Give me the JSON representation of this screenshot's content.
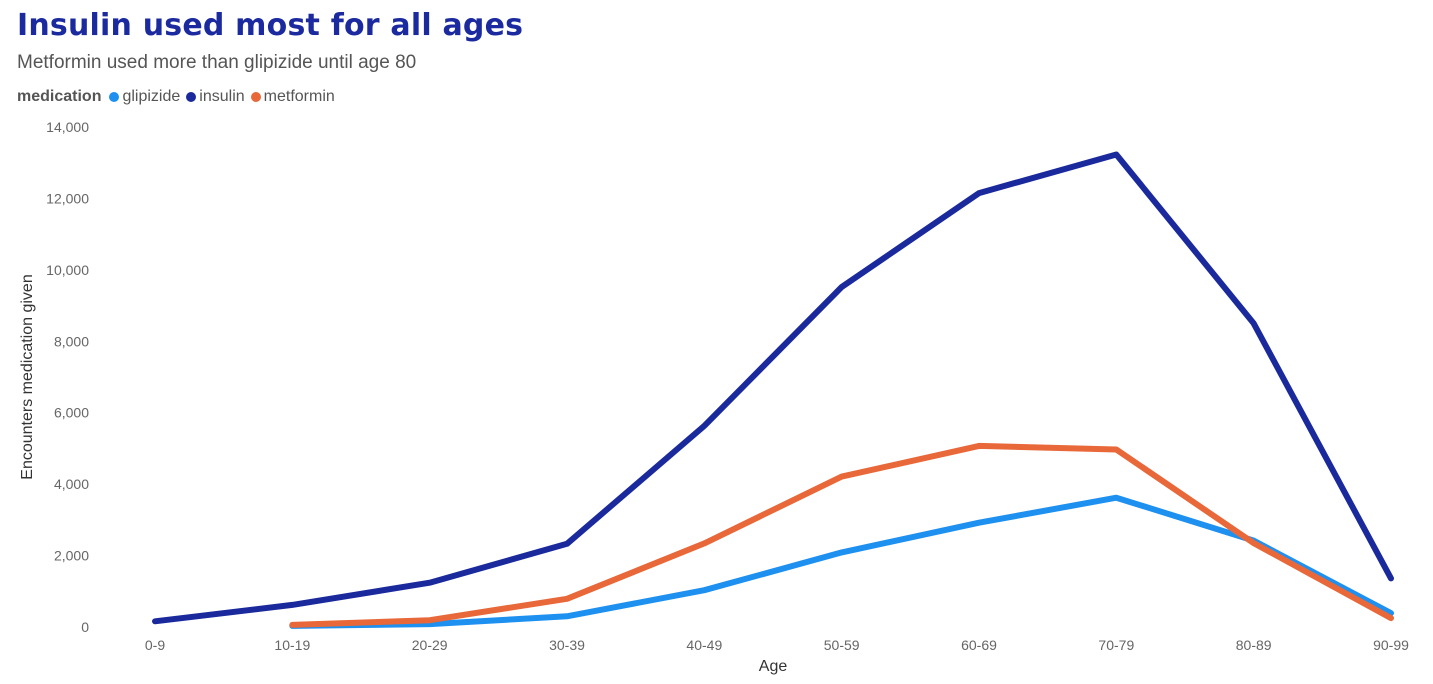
{
  "chart_data": {
    "type": "line",
    "title": "Insulin used most for all ages",
    "subtitle": "Metformin used more than glipizide until age 80",
    "legend_title": "medication",
    "legend_position": "top-left",
    "xlabel": "Age",
    "ylabel": "Encounters medication given",
    "ylim": [
      0,
      14000
    ],
    "yticks": [
      0,
      2000,
      4000,
      6000,
      8000,
      10000,
      12000,
      14000
    ],
    "ytick_labels": [
      "0",
      "2,000",
      "4,000",
      "6,000",
      "8,000",
      "10,000",
      "12,000",
      "14,000"
    ],
    "grid": false,
    "categories": [
      "0-9",
      "10-19",
      "20-29",
      "30-39",
      "40-49",
      "50-59",
      "60-69",
      "70-79",
      "80-89",
      "90-99"
    ],
    "series": [
      {
        "name": "glipizide",
        "color": "#1e90f0",
        "values": [
          null,
          30,
          80,
          300,
          1030,
          2090,
          2920,
          3620,
          2420,
          390
        ]
      },
      {
        "name": "insulin",
        "color": "#1a2a9c",
        "values": [
          160,
          620,
          1240,
          2330,
          5630,
          9520,
          12150,
          13230,
          8500,
          1360
        ]
      },
      {
        "name": "metformin",
        "color": "#e8683a",
        "values": [
          null,
          60,
          190,
          790,
          2340,
          4210,
          5070,
          4970,
          2350,
          250
        ]
      }
    ]
  }
}
